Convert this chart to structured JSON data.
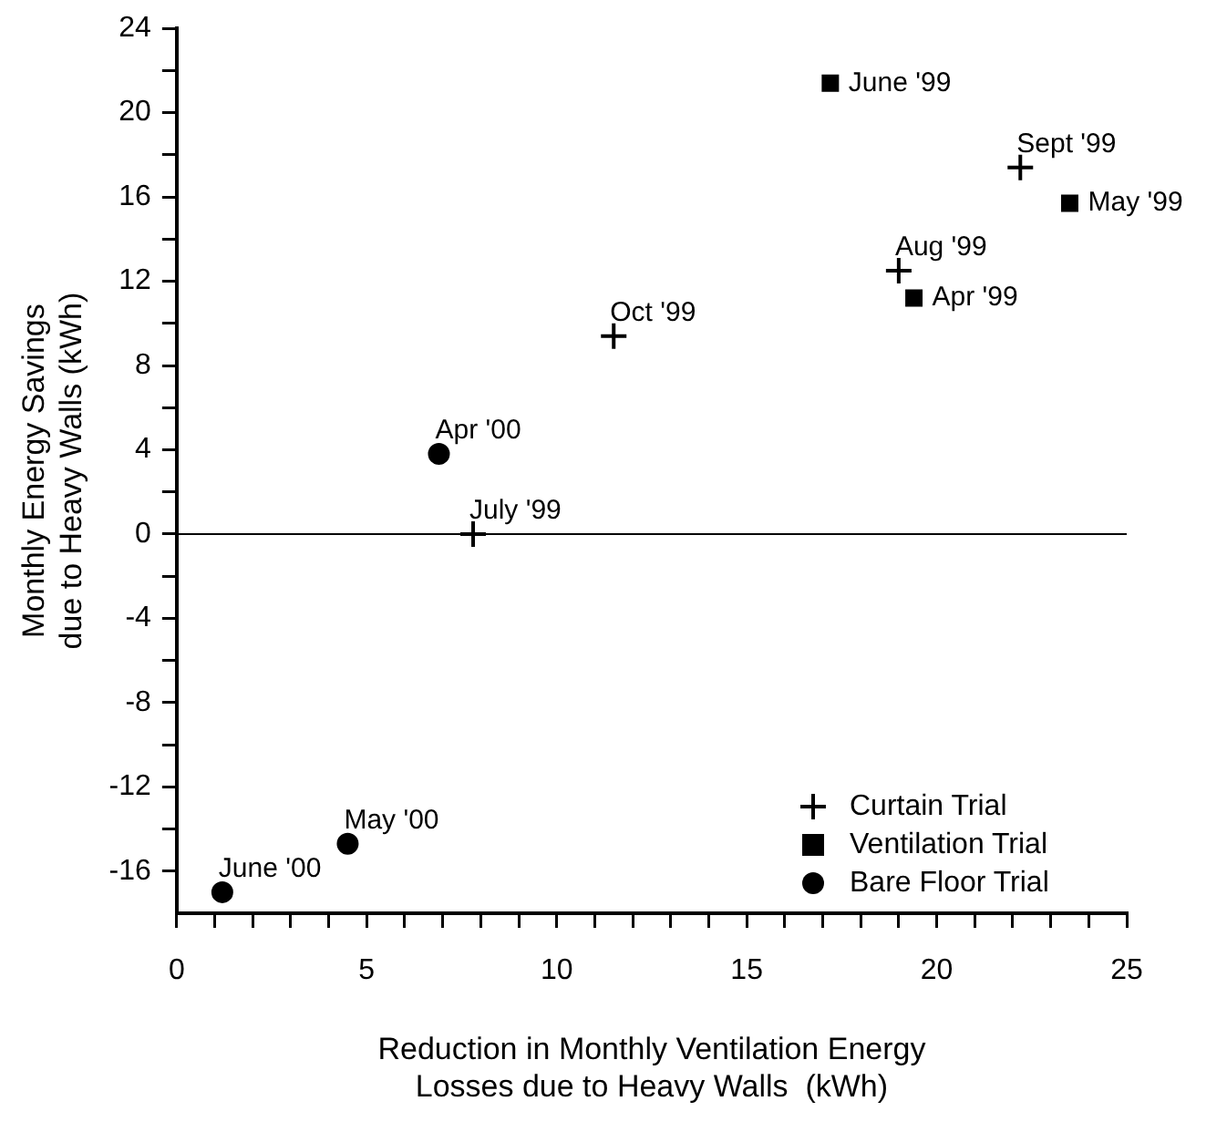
{
  "chart_data": {
    "type": "scatter",
    "xlabel": "Reduction in Monthly Ventilation Energy\nLosses due to Heavy Walls  (kWh)",
    "ylabel": "Monthly Energy Savings\ndue to Heavy Walls (kWh)",
    "xlim": [
      0,
      25
    ],
    "ylim": [
      -18,
      24
    ],
    "xticks": [
      0,
      {
        "value": 1,
        "label": null
      },
      {
        "value": 2,
        "label": null
      },
      {
        "value": 3,
        "label": null
      },
      {
        "value": 4,
        "label": null
      },
      5,
      {
        "value": 6,
        "label": null
      },
      {
        "value": 7,
        "label": null
      },
      {
        "value": 8,
        "label": null
      },
      {
        "value": 9,
        "label": null
      },
      10,
      {
        "value": 11,
        "label": null
      },
      {
        "value": 12,
        "label": null
      },
      {
        "value": 13,
        "label": null
      },
      {
        "value": 14,
        "label": null
      },
      15,
      {
        "value": 16,
        "label": null
      },
      {
        "value": 17,
        "label": null
      },
      {
        "value": 18,
        "label": null
      },
      {
        "value": 19,
        "label": null
      },
      20,
      {
        "value": 21,
        "label": null
      },
      {
        "value": 22,
        "label": null
      },
      {
        "value": 23,
        "label": null
      },
      {
        "value": 24,
        "label": null
      },
      25
    ],
    "yticks": [
      -16,
      {
        "value": -14,
        "label": null
      },
      -12,
      {
        "value": -10,
        "label": null
      },
      -8,
      {
        "value": -6,
        "label": null
      },
      -4,
      {
        "value": -2,
        "label": null
      },
      0,
      {
        "value": 2,
        "label": null
      },
      4,
      {
        "value": 6,
        "label": null
      },
      8,
      {
        "value": 10,
        "label": null
      },
      12,
      {
        "value": 14,
        "label": null
      },
      16,
      {
        "value": 18,
        "label": null
      },
      20,
      {
        "value": 22,
        "label": null
      },
      24
    ],
    "grid": false,
    "legend": "bottom right",
    "ref_lines": [
      {
        "axis": "y",
        "value": 0,
        "color": "#000000"
      }
    ],
    "series": [
      {
        "name": "Curtain Trial",
        "color": "#000000",
        "marker": "cross",
        "x": [
          7.8,
          11.5,
          19.0,
          22.2
        ],
        "values": [
          0,
          9.4,
          12.5,
          17.4
        ]
      },
      {
        "name": "Ventilation Trial",
        "color": "#000000",
        "marker": "square",
        "x": [
          17.2,
          19.4,
          23.5
        ],
        "values": [
          21.4,
          11.2,
          15.7
        ]
      },
      {
        "name": "Bare Floor Trial",
        "color": "#000000",
        "marker": "circle",
        "x": [
          6.9,
          4.5,
          1.2
        ],
        "values": [
          3.8,
          -14.7,
          -17.0
        ]
      }
    ],
    "annotations": [
      {
        "text": "July '99",
        "x": 7.8,
        "y": 0
      },
      {
        "text": "Oct '99",
        "x": 11.5,
        "y": 9.4
      },
      {
        "text": "Aug '99",
        "x": 19.0,
        "y": 12.5
      },
      {
        "text": "Sept '99",
        "x": 22.2,
        "y": 17.4
      },
      {
        "text": "June '99",
        "x": 17.2,
        "y": 21.4
      },
      {
        "text": "Apr '99",
        "x": 19.4,
        "y": 11.2
      },
      {
        "text": "May '99",
        "x": 23.5,
        "y": 15.7
      },
      {
        "text": "Apr '00",
        "x": 6.9,
        "y": 3.8
      },
      {
        "text": "May '00",
        "x": 4.5,
        "y": -14.7
      },
      {
        "text": "June '00",
        "x": 1.2,
        "y": -17.0
      }
    ]
  }
}
